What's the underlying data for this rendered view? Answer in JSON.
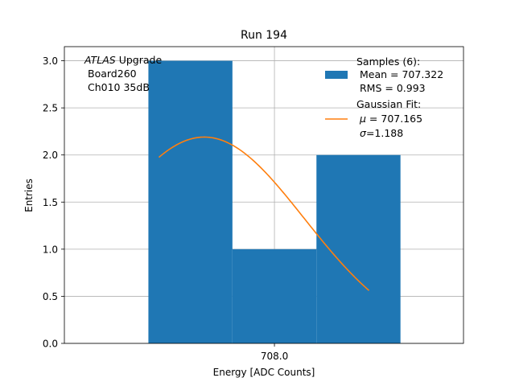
{
  "chart_data": {
    "type": "bar",
    "title": "Run 194",
    "xlabel": "Energy [ADC Counts]",
    "ylabel": "Entries",
    "xlim": [
      705.5,
      710.25
    ],
    "ylim": [
      0,
      3.15
    ],
    "x_ticks": [
      708.0
    ],
    "x_tick_labels": [
      "708.0"
    ],
    "y_ticks": [
      0.0,
      0.5,
      1.0,
      1.5,
      2.0,
      2.5,
      3.0
    ],
    "y_tick_labels": [
      "0.0",
      "0.5",
      "1.0",
      "1.5",
      "2.0",
      "2.5",
      "3.0"
    ],
    "grid": true,
    "bins": [
      {
        "left": 706.5,
        "right": 707.5,
        "count": 3
      },
      {
        "left": 707.5,
        "right": 708.5,
        "count": 1
      },
      {
        "left": 708.5,
        "right": 709.5,
        "count": 2
      }
    ],
    "fit": {
      "name": "Gaussian Fit",
      "mu": 707.165,
      "sigma": 1.188,
      "peak": 2.19,
      "x_range": [
        706.625,
        709.125
      ]
    },
    "annotation": {
      "experiment": "ATLAS",
      "experiment_suffix": " Upgrade",
      "line2": "Board260",
      "line3": "Ch010 35dB"
    },
    "legend": {
      "position": "top-right",
      "samples_label": "Samples (6):",
      "samples_mean": "Mean = 707.322",
      "samples_rms": "RMS = 0.993",
      "fit_label": "Gaussian Fit:",
      "fit_mu_symbol": "μ",
      "fit_mu_text": " = 707.165",
      "fit_sigma_symbol": "σ",
      "fit_sigma_text": "=1.188"
    },
    "colors": {
      "bars": "#1f77b4",
      "fit": "#ff7f0e"
    }
  }
}
